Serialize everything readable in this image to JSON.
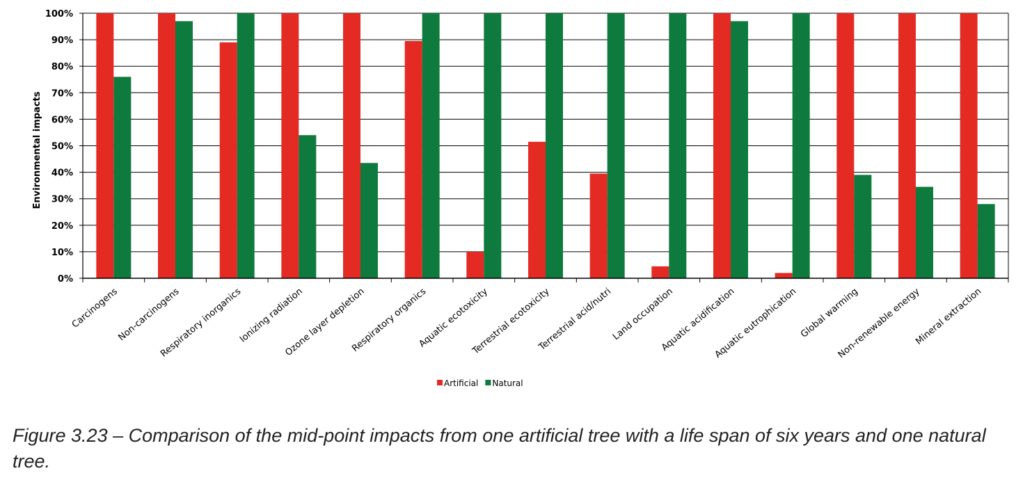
{
  "chart_data": {
    "type": "bar",
    "ylabel": "Environmental impacts",
    "xlabel": "",
    "ylim": [
      0,
      100
    ],
    "y_ticks": [
      "0%",
      "10%",
      "20%",
      "30%",
      "40%",
      "50%",
      "60%",
      "70%",
      "80%",
      "90%",
      "100%"
    ],
    "grid": true,
    "legend_position": "bottom-center",
    "categories": [
      "Carcinogens",
      "Non-carcinogens",
      "Respiratory inorganics",
      "Ionizing radiation",
      "Ozone layer depletion",
      "Respiratory organics",
      "Aquatic ecotoxicity",
      "Terrestrial ecotoxicity",
      "Terrestrial acid/nutri",
      "Land occupation",
      "Aquatic acidification",
      "Aquatic eutrophication",
      "Global warming",
      "Non-renewable energy",
      "Mineral extraction"
    ],
    "series": [
      {
        "name": "Artificial",
        "color": "#e32b24",
        "values": [
          100,
          100,
          89,
          100,
          100,
          89.5,
          10,
          51.5,
          39.5,
          4.5,
          100,
          2,
          100,
          100,
          100
        ]
      },
      {
        "name": "Natural",
        "color": "#0f7a3e",
        "values": [
          76,
          97,
          100,
          54,
          43.5,
          100,
          100,
          100,
          100,
          100,
          97,
          100,
          39,
          34.5,
          28
        ]
      }
    ]
  },
  "caption": "Figure 3.23 – Comparison of the mid-point impacts from one artificial tree with a life span of six years and one natural tree."
}
